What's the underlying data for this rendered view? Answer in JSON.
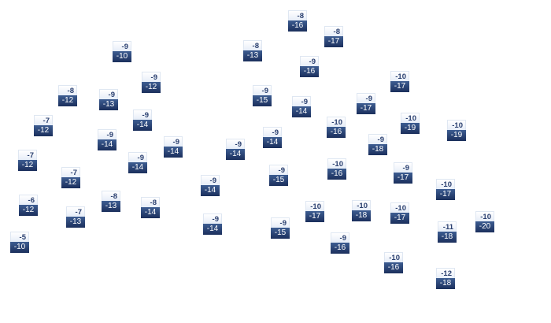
{
  "labels": [
    {
      "top": "-9",
      "bottom": "-10"
    },
    {
      "top": "-9",
      "bottom": "-12"
    },
    {
      "top": "-8",
      "bottom": "-12"
    },
    {
      "top": "-9",
      "bottom": "-13"
    },
    {
      "top": "-7",
      "bottom": "-12"
    },
    {
      "top": "-9",
      "bottom": "-14"
    },
    {
      "top": "-9",
      "bottom": "-14"
    },
    {
      "top": "-9",
      "bottom": "-14"
    },
    {
      "top": "-7",
      "bottom": "-12"
    },
    {
      "top": "-9",
      "bottom": "-14"
    },
    {
      "top": "-7",
      "bottom": "-12"
    },
    {
      "top": "-6",
      "bottom": "-12"
    },
    {
      "top": "-8",
      "bottom": "-13"
    },
    {
      "top": "-8",
      "bottom": "-14"
    },
    {
      "top": "-7",
      "bottom": "-13"
    },
    {
      "top": "-5",
      "bottom": "-10"
    },
    {
      "top": "-8",
      "bottom": "-16"
    },
    {
      "top": "-8",
      "bottom": "-17"
    },
    {
      "top": "-8",
      "bottom": "-13"
    },
    {
      "top": "-9",
      "bottom": "-16"
    },
    {
      "top": "-9",
      "bottom": "-15"
    },
    {
      "top": "-9",
      "bottom": "-14"
    },
    {
      "top": "-9",
      "bottom": "-17"
    },
    {
      "top": "-10",
      "bottom": "-16"
    },
    {
      "top": "-9",
      "bottom": "-14"
    },
    {
      "top": "-9",
      "bottom": "-14"
    },
    {
      "top": "-9",
      "bottom": "-15"
    },
    {
      "top": "-10",
      "bottom": "-16"
    },
    {
      "top": "-9",
      "bottom": "-14"
    },
    {
      "top": "-9",
      "bottom": "-14"
    },
    {
      "top": "-10",
      "bottom": "-17"
    },
    {
      "top": "-10",
      "bottom": "-18"
    },
    {
      "top": "-9",
      "bottom": "-15"
    },
    {
      "top": "-9",
      "bottom": "-16"
    },
    {
      "top": "-10",
      "bottom": "-17"
    },
    {
      "top": "-10",
      "bottom": "-19"
    },
    {
      "top": "-10",
      "bottom": "-19"
    },
    {
      "top": "-9",
      "bottom": "-18"
    },
    {
      "top": "-9",
      "bottom": "-17"
    },
    {
      "top": "-10",
      "bottom": "-17"
    },
    {
      "top": "-10",
      "bottom": "-17"
    },
    {
      "top": "-10",
      "bottom": "-20"
    },
    {
      "top": "-11",
      "bottom": "-18"
    },
    {
      "top": "-10",
      "bottom": "-16"
    },
    {
      "top": "-12",
      "bottom": "-18"
    }
  ],
  "colors": {
    "label_top_text": "#2b4070",
    "label_bottom_bg": "#1b2f5c",
    "label_bottom_text": "#ffffff"
  }
}
